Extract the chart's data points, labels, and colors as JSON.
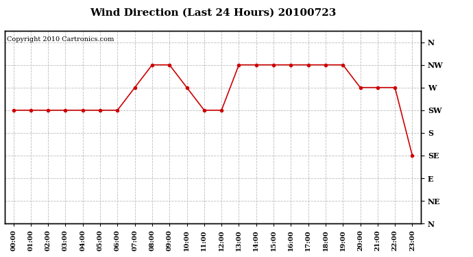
{
  "title": "Wind Direction (Last 24 Hours) 20100723",
  "copyright_text": "Copyright 2010 Cartronics.com",
  "hours": [
    0,
    1,
    2,
    3,
    4,
    5,
    6,
    7,
    8,
    9,
    10,
    11,
    12,
    13,
    14,
    15,
    16,
    17,
    18,
    19,
    20,
    21,
    22,
    23
  ],
  "hour_labels": [
    "00:00",
    "01:00",
    "02:00",
    "03:00",
    "04:00",
    "05:00",
    "06:00",
    "07:00",
    "08:00",
    "09:00",
    "10:00",
    "11:00",
    "12:00",
    "13:00",
    "14:00",
    "15:00",
    "16:00",
    "17:00",
    "18:00",
    "19:00",
    "20:00",
    "21:00",
    "22:00",
    "23:00"
  ],
  "ytick_labels": [
    "N",
    "NW",
    "W",
    "SW",
    "S",
    "SE",
    "E",
    "NE",
    "N"
  ],
  "ytick_values": [
    8,
    7,
    6,
    5,
    4,
    3,
    2,
    1,
    0
  ],
  "data_values": [
    5,
    5,
    5,
    5,
    5,
    5,
    5,
    6,
    7,
    7,
    6,
    5,
    5,
    7,
    7,
    7,
    7,
    7,
    7,
    7,
    6,
    6,
    6,
    3
  ],
  "line_color": "#cc0000",
  "marker": "o",
  "marker_size": 3,
  "bg_color": "#ffffff",
  "plot_bg_color": "#ffffff",
  "grid_color": "#bbbbbb",
  "title_fontsize": 11,
  "axis_fontsize": 7,
  "copyright_fontsize": 7,
  "ylim_min": 0,
  "ylim_max": 8.5
}
